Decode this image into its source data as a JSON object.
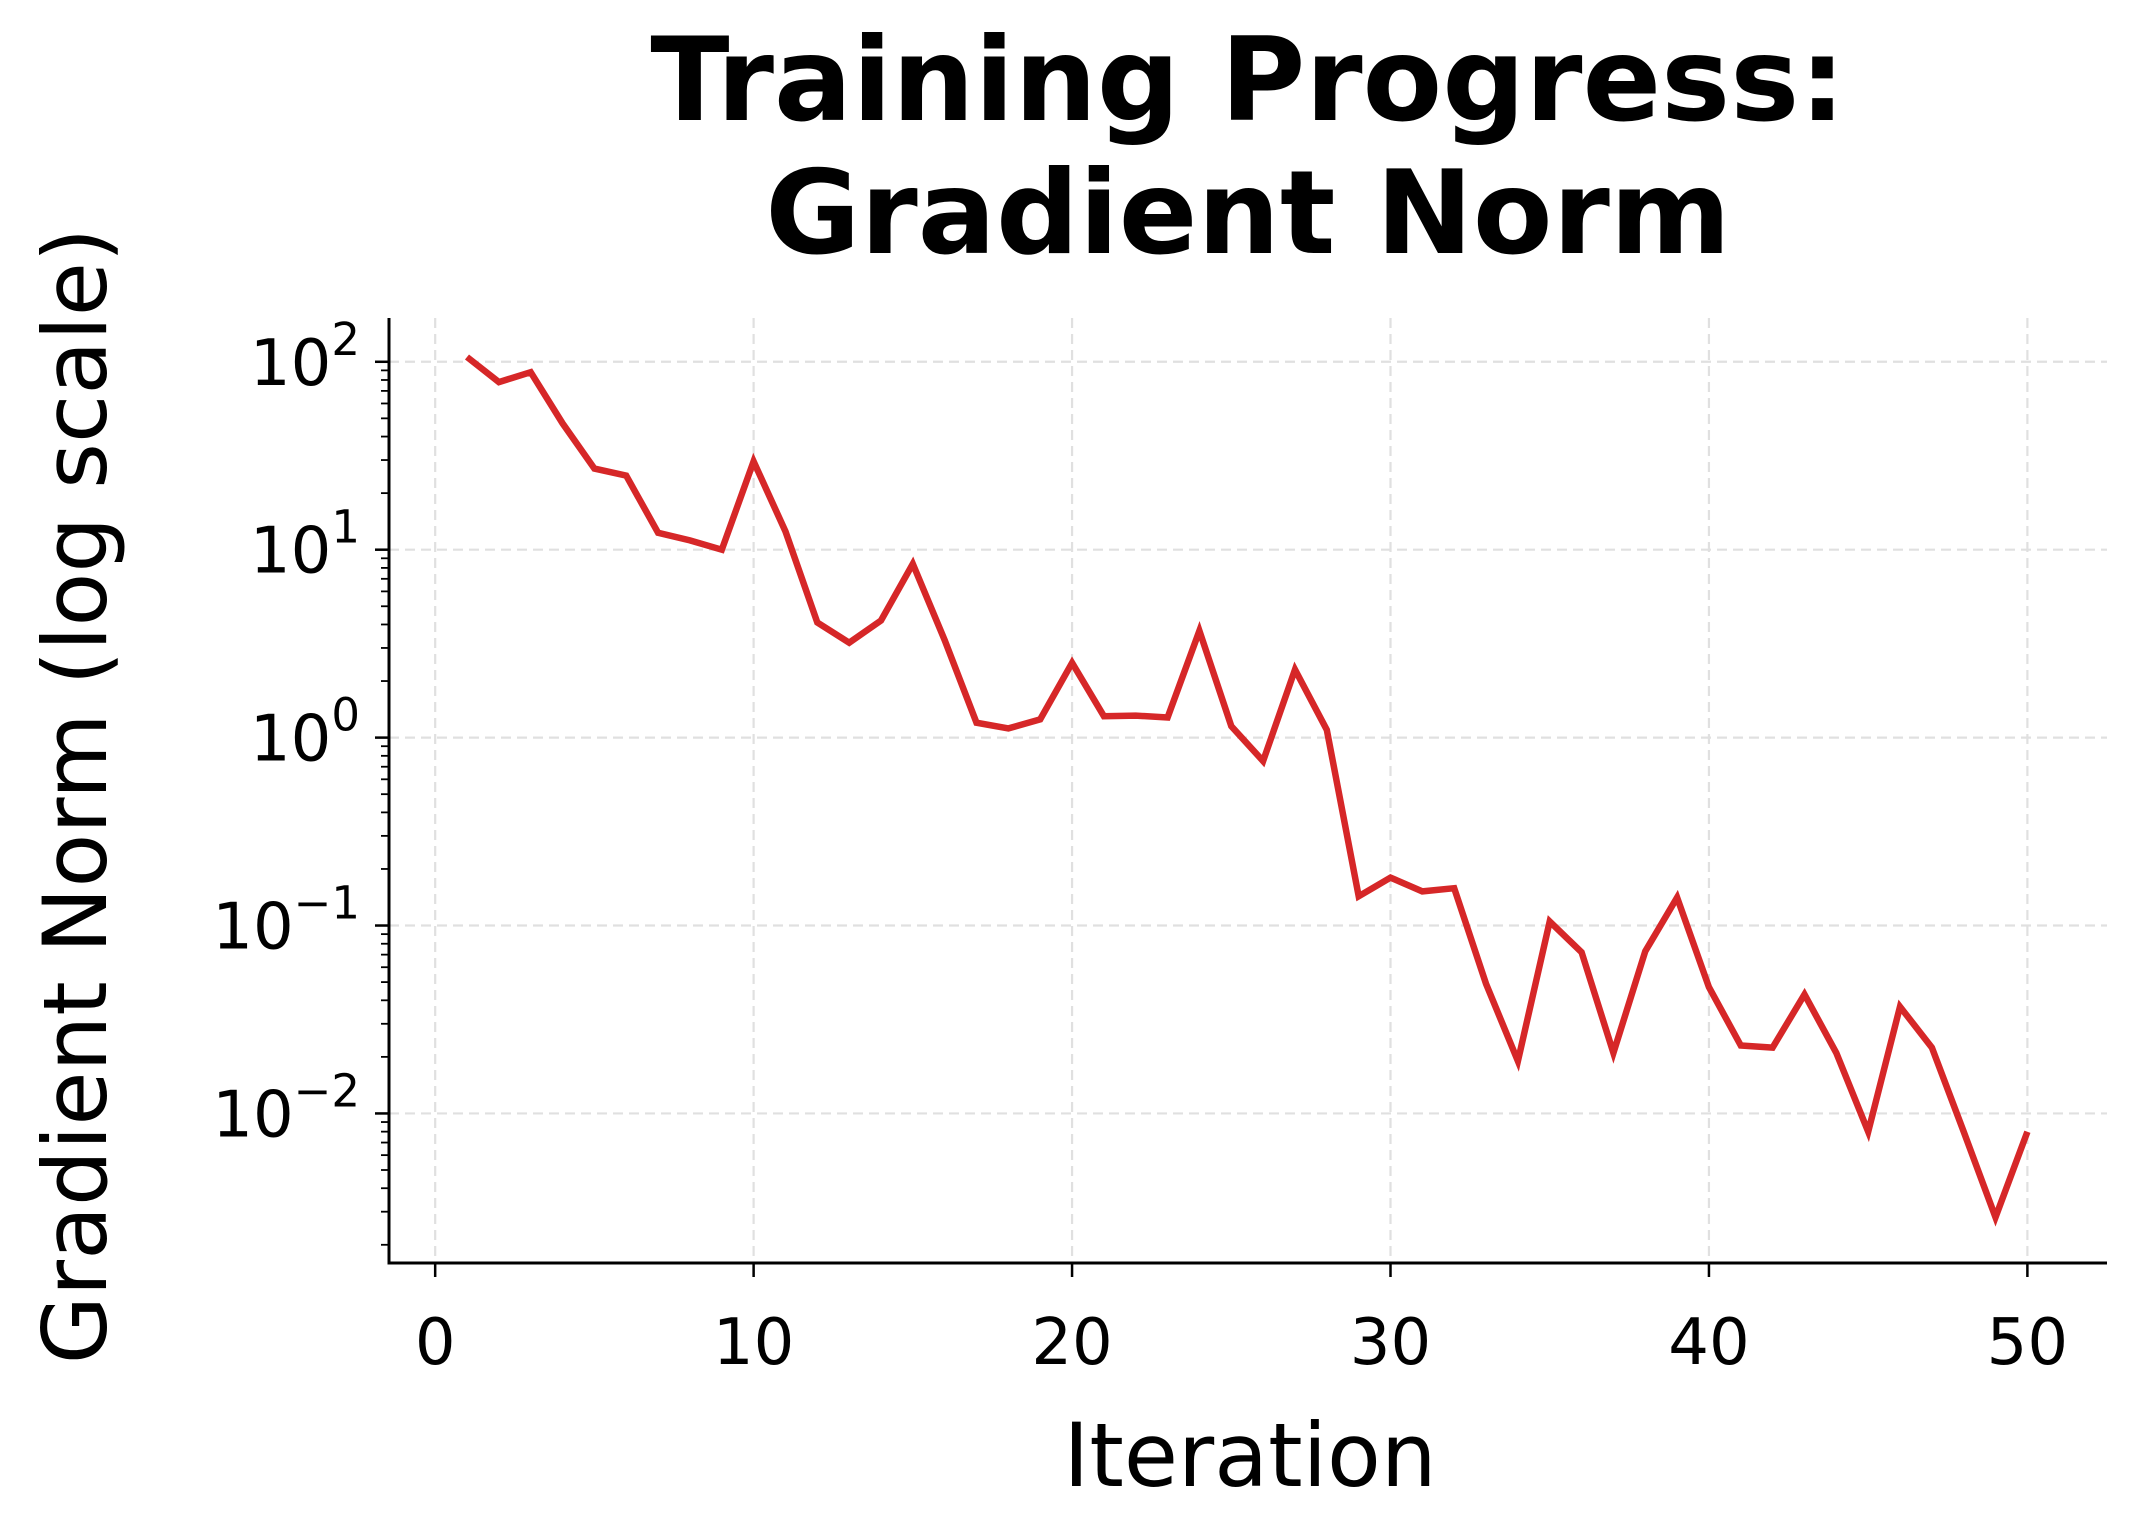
{
  "chart_data": {
    "type": "line",
    "title": "Training Progress:\nGradient Norm",
    "title_lines": [
      "Training Progress:",
      "Gradient Norm"
    ],
    "xlabel": "Iteration",
    "ylabel": "Gradient Norm (log scale)",
    "yscale": "log",
    "xlim": [
      -1.45,
      52.5
    ],
    "ylim": [
      0.0016,
      171
    ],
    "grid": true,
    "legend": null,
    "x_ticks": [
      0,
      10,
      20,
      30,
      40,
      50
    ],
    "x_tick_labels": [
      "0",
      "10",
      "20",
      "30",
      "40",
      "50"
    ],
    "y_ticks": [
      100,
      10,
      1,
      0.1,
      0.01
    ],
    "y_tick_labels": [
      {
        "base": "10",
        "exp": "2"
      },
      {
        "base": "10",
        "exp": "1"
      },
      {
        "base": "10",
        "exp": "0"
      },
      {
        "base": "10",
        "exp": "−1"
      },
      {
        "base": "10",
        "exp": "−2"
      }
    ],
    "series": [
      {
        "name": "Gradient Norm",
        "color": "#d62728",
        "x": [
          1,
          2,
          3,
          4,
          5,
          6,
          7,
          8,
          9,
          10,
          11,
          12,
          13,
          14,
          15,
          16,
          17,
          18,
          19,
          20,
          21,
          22,
          23,
          24,
          25,
          26,
          27,
          28,
          29,
          30,
          31,
          32,
          33,
          34,
          35,
          36,
          37,
          38,
          39,
          40,
          41,
          42,
          43,
          44,
          45,
          46,
          47,
          48,
          49,
          50
        ],
        "values": [
          106,
          78,
          88,
          47,
          27,
          24.8,
          12.3,
          11.2,
          10.0,
          29.5,
          12.5,
          4.1,
          3.2,
          4.2,
          8.4,
          3.3,
          1.2,
          1.12,
          1.25,
          2.5,
          1.3,
          1.31,
          1.28,
          3.7,
          1.15,
          0.75,
          2.3,
          1.1,
          0.143,
          0.18,
          0.152,
          0.158,
          0.049,
          0.019,
          0.105,
          0.072,
          0.021,
          0.073,
          0.141,
          0.047,
          0.023,
          0.0224,
          0.043,
          0.021,
          0.008,
          0.037,
          0.0224,
          0.008,
          0.0028,
          0.008
        ]
      }
    ]
  },
  "colors": {
    "line": "#d62728",
    "grid": "#e0e0e0",
    "axis": "#000000",
    "background": "#ffffff"
  }
}
